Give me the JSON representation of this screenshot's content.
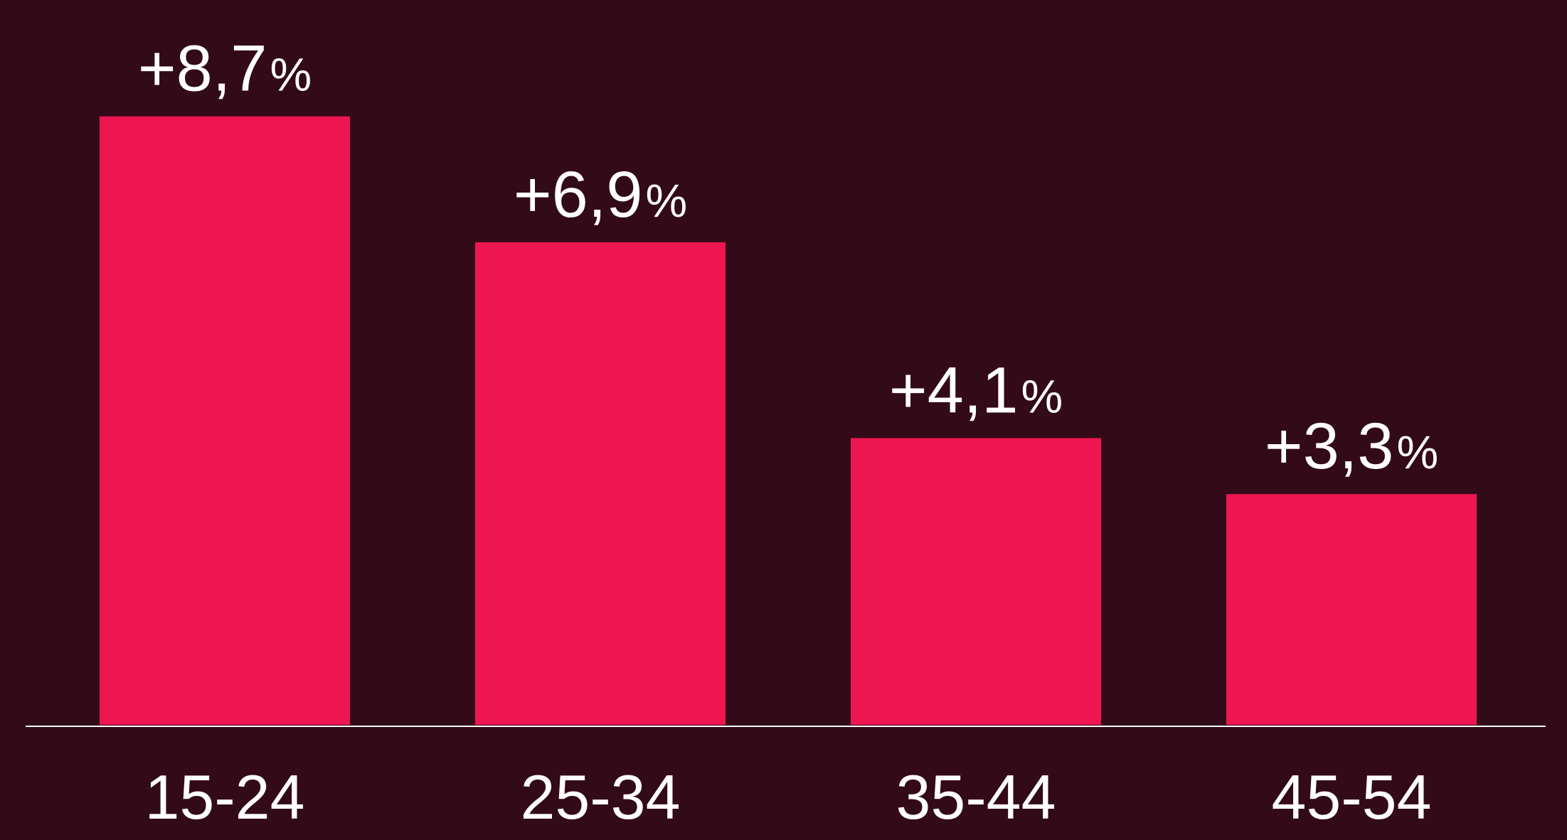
{
  "chart_data": {
    "type": "bar",
    "categories": [
      "15-24",
      "25-34",
      "35-44",
      "45-54"
    ],
    "values": [
      8.7,
      6.9,
      4.1,
      3.3
    ],
    "value_labels": [
      "+8,7",
      "+6,9",
      "+4,1",
      "+3,3"
    ],
    "value_suffix": "%",
    "ylim": [
      0,
      9.5
    ],
    "grid": false,
    "colors": {
      "background": "#330a18",
      "bar": "#ee1651",
      "text": "#ffffff",
      "axis": "#ffffff"
    }
  }
}
